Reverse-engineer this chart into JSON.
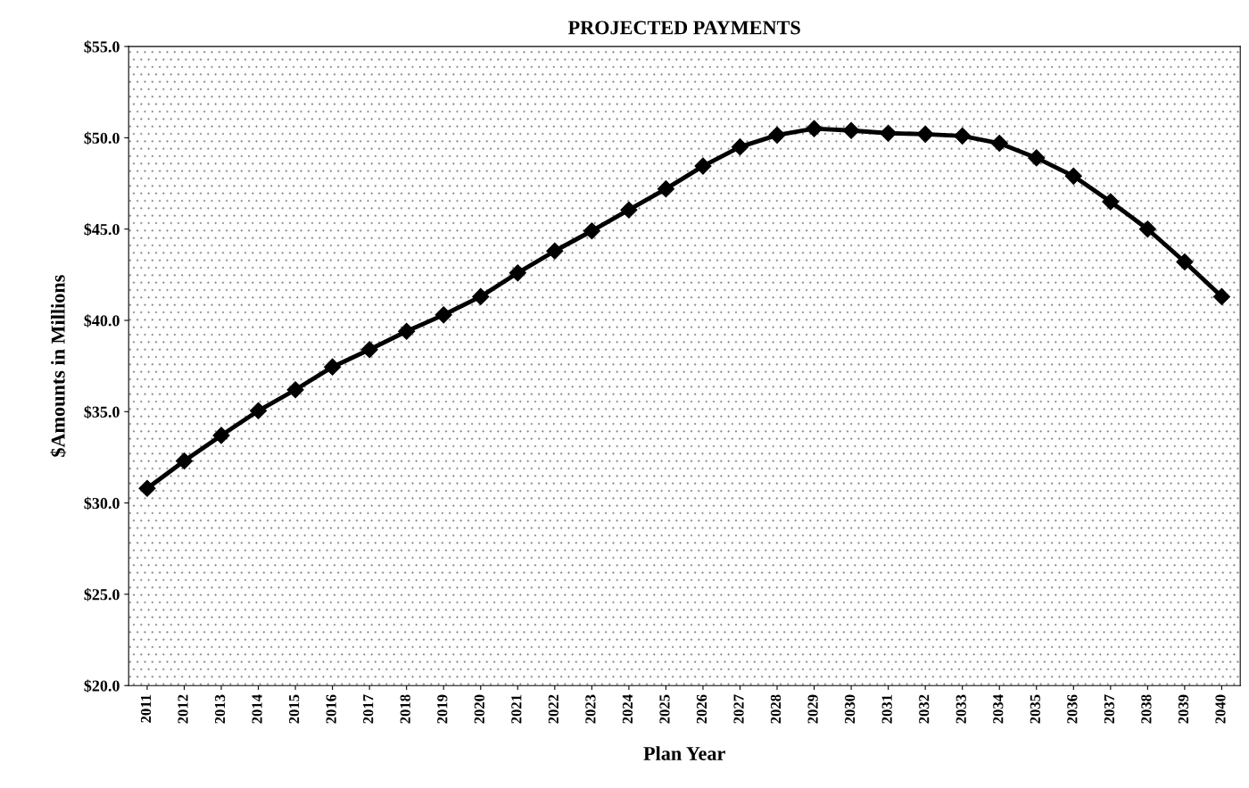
{
  "chart_data": {
    "type": "line",
    "title": "PROJECTED PAYMENTS",
    "xlabel": "Plan Year",
    "ylabel": "$Amounts in Millions",
    "categories": [
      "2011",
      "2012",
      "2013",
      "2014",
      "2015",
      "2016",
      "2017",
      "2018",
      "2019",
      "2020",
      "2021",
      "2022",
      "2023",
      "2024",
      "2025",
      "2026",
      "2027",
      "2028",
      "2029",
      "2030",
      "2031",
      "2032",
      "2033",
      "2034",
      "2035",
      "2036",
      "2037",
      "2038",
      "2039",
      "2040"
    ],
    "series": [
      {
        "color": "#000000",
        "values": [
          30.8,
          32.3,
          33.7,
          35.05,
          36.2,
          37.45,
          38.4,
          39.4,
          40.3,
          41.3,
          42.6,
          43.8,
          44.9,
          46.05,
          47.2,
          48.45,
          49.5,
          50.15,
          50.5,
          50.4,
          50.25,
          50.2,
          50.1,
          49.7,
          48.9,
          47.9,
          46.5,
          45.0,
          43.2,
          41.3
        ]
      }
    ],
    "ylim": [
      20,
      55
    ],
    "yticks": [
      {
        "value": 20,
        "label": "$20.0"
      },
      {
        "value": 25,
        "label": "$25.0"
      },
      {
        "value": 30,
        "label": "$30.0"
      },
      {
        "value": 35,
        "label": "$35.0"
      },
      {
        "value": 40,
        "label": "$40.0"
      },
      {
        "value": 45,
        "label": "$45.0"
      },
      {
        "value": 50,
        "label": "$50.0"
      },
      {
        "value": 55,
        "label": "$55.0"
      }
    ],
    "grid": false,
    "marker": "diamond",
    "line_style": "solid"
  }
}
